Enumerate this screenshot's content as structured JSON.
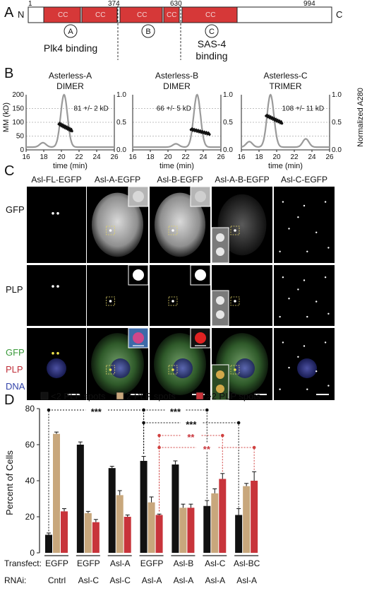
{
  "panel_a": {
    "label": "A",
    "n_term": "N",
    "c_term": "C",
    "positions": [
      "1",
      "374",
      "630",
      "994"
    ],
    "cc_label": "CC",
    "regions": [
      {
        "letter": "A",
        "caption_lines": [
          "Plk4 binding"
        ]
      },
      {
        "letter": "B",
        "caption_lines": []
      },
      {
        "letter": "C",
        "caption_lines": [
          "SAS-4",
          "binding"
        ]
      }
    ]
  },
  "panel_b": {
    "label": "B",
    "ylabel_left": "MM (kD)",
    "ylabel_right": "Normalized A280",
    "xlabel": "time (min)",
    "x_ticks": [
      "16",
      "18",
      "20",
      "22",
      "24",
      "26"
    ],
    "y_left_ticks": [
      "0",
      "50",
      "100",
      "150",
      "200"
    ],
    "y_right_ticks": [
      "0.0",
      "0.5",
      "1.0"
    ],
    "plots": [
      {
        "title_lines": [
          "Asterless-A",
          "DIMER"
        ],
        "annotation": "81 +/- 2 kD"
      },
      {
        "title_lines": [
          "Asterless-B",
          "DIMER"
        ],
        "annotation": "66 +/- 5 kD"
      },
      {
        "title_lines": [
          "Asterless-C",
          "TRIMER"
        ],
        "annotation": "108 +/- 11 kD"
      }
    ]
  },
  "panel_c": {
    "label": "C",
    "columns": [
      "Asl-FL-EGFP",
      "Asl-A-EGFP",
      "Asl-B-EGFP",
      "Asl-A-B-EGFP",
      "Asl-C-EGFP"
    ],
    "rows": [
      "GFP",
      "PLP"
    ],
    "merge_labels": [
      {
        "text": "GFP",
        "color": "#3a9a3a"
      },
      {
        "text": "PLP",
        "color": "#c0303a"
      },
      {
        "text": "DNA",
        "color": "#3344aa"
      }
    ]
  },
  "panel_d": {
    "label": "D",
    "significance": "***",
    "significance_red": "**",
    "transfect_label": "Transfect:",
    "rnai_label": "RNAi:",
    "colors": {
      "lt2": "#111111",
      "eq2": "#c8a77c",
      "gt2": "#c8343b",
      "sig_red": "#d0403f"
    },
    "chart_data": {
      "type": "bar",
      "ylabel": "Percent of Cells",
      "ylim": [
        0,
        80
      ],
      "y_ticks": [
        0,
        20,
        40,
        60,
        80
      ],
      "legend": "top",
      "categories": [
        {
          "transfect": "EGFP",
          "rnai": "Cntrl"
        },
        {
          "transfect": "EGFP",
          "rnai": "Asl-C"
        },
        {
          "transfect": "Asl-A",
          "rnai": "Asl-C"
        },
        {
          "transfect": "EGFP",
          "rnai": "Asl-A"
        },
        {
          "transfect": "Asl-B",
          "rnai": "Asl-A"
        },
        {
          "transfect": "Asl-C",
          "rnai": "Asl-A"
        },
        {
          "transfect": "Asl-BC",
          "rnai": "Asl-A"
        }
      ],
      "series": [
        {
          "name": "<2 PLP spots",
          "values": [
            10,
            60,
            47,
            51,
            49,
            26,
            21
          ],
          "errors": [
            1,
            1.5,
            1,
            2.5,
            2,
            3,
            3.5
          ]
        },
        {
          "name": "2 PLP spots",
          "values": [
            66,
            22,
            32,
            28,
            25,
            33,
            37
          ],
          "errors": [
            1,
            1,
            2.5,
            3,
            2,
            2.5,
            1.5
          ]
        },
        {
          "name": ">2 PLP spots",
          "values": [
            23,
            17,
            20,
            21,
            25,
            41,
            40
          ],
          "errors": [
            1.5,
            1.5,
            1,
            0.5,
            2,
            3,
            5
          ]
        }
      ]
    }
  }
}
